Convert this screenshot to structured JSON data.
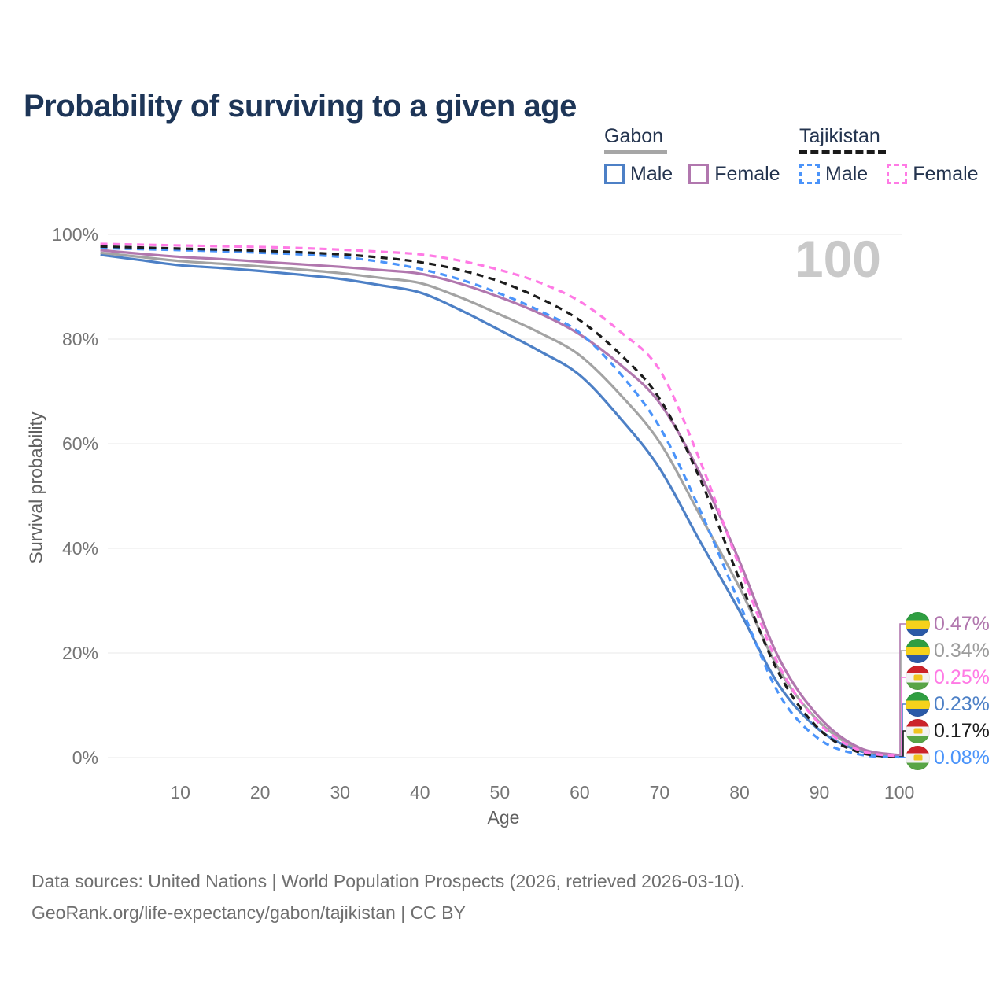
{
  "title": "Probability of surviving to a given age",
  "watermark": "100",
  "legend": {
    "groups": [
      {
        "country": "Gabon",
        "underline_style": "solid",
        "underline_color": "#a6a6a6",
        "items": [
          {
            "label": "Male",
            "color": "#4d80c6",
            "dashed": false
          },
          {
            "label": "Female",
            "color": "#b177ae",
            "dashed": false
          }
        ]
      },
      {
        "country": "Tajikistan",
        "underline_style": "dashed",
        "underline_color": "#1a1a1a",
        "items": [
          {
            "label": "Male",
            "color": "#4b94fa",
            "dashed": true
          },
          {
            "label": "Female",
            "color": "#ff7ae5",
            "dashed": true
          }
        ]
      }
    ]
  },
  "chart_data": {
    "type": "line",
    "title": "Probability of surviving to a given age",
    "xlabel": "Age",
    "ylabel": "Survival probability",
    "xlim": [
      0,
      100
    ],
    "ylim": [
      0,
      100
    ],
    "grid": "horizontal",
    "x_ticks": [
      10,
      20,
      30,
      40,
      50,
      60,
      70,
      80,
      90,
      100
    ],
    "y_ticks": [
      {
        "value": 0,
        "label": "0%"
      },
      {
        "value": 20,
        "label": "20%"
      },
      {
        "value": 40,
        "label": "40%"
      },
      {
        "value": 60,
        "label": "60%"
      },
      {
        "value": 80,
        "label": "80%"
      },
      {
        "value": 100,
        "label": "100%"
      }
    ],
    "ages": [
      0,
      5,
      10,
      15,
      20,
      25,
      30,
      35,
      40,
      45,
      50,
      55,
      60,
      65,
      70,
      75,
      80,
      85,
      90,
      95,
      100
    ],
    "series": [
      {
        "id": "gabon-male",
        "name": "Gabon Male",
        "color": "#4d80c6",
        "dashed": false,
        "values": [
          96.1,
          95.1,
          94.1,
          93.6,
          93.0,
          92.3,
          91.5,
          90.3,
          88.9,
          85.6,
          81.7,
          77.7,
          73.1,
          65.0,
          55.3,
          41.5,
          28.0,
          13.7,
          5.3,
          1.3,
          0.23
        ],
        "end_value": "0.23%"
      },
      {
        "id": "gabon-all",
        "name": "Gabon",
        "color": "#a3a3a3",
        "dashed": false,
        "values": [
          96.5,
          95.7,
          94.9,
          94.4,
          93.9,
          93.3,
          92.6,
          91.7,
          90.7,
          88.0,
          84.7,
          81.2,
          76.9,
          69.5,
          60.3,
          46.5,
          32.5,
          16.7,
          6.8,
          1.6,
          0.34
        ],
        "end_value": "0.34%"
      },
      {
        "id": "gabon-female",
        "name": "Gabon Female",
        "color": "#b177ae",
        "dashed": false,
        "values": [
          97.0,
          96.3,
          95.7,
          95.3,
          94.8,
          94.3,
          93.8,
          93.2,
          92.5,
          90.6,
          88.0,
          84.9,
          80.9,
          75.2,
          67.8,
          54.5,
          37.5,
          18.8,
          7.7,
          1.9,
          0.47
        ],
        "end_value": "0.47%"
      },
      {
        "id": "tajikistan-male",
        "name": "Tajikistan Male",
        "color": "#4b94fa",
        "dashed": true,
        "values": [
          97.4,
          97.2,
          97.0,
          96.8,
          96.5,
          96.2,
          95.7,
          94.8,
          93.4,
          91.4,
          88.7,
          85.4,
          81.2,
          73.5,
          63.2,
          47.5,
          29.5,
          12.0,
          3.5,
          0.6,
          0.08
        ],
        "end_value": "0.08%"
      },
      {
        "id": "tajikistan-all",
        "name": "Tajikistan",
        "color": "#1c1c1c",
        "dashed": true,
        "values": [
          97.7,
          97.5,
          97.3,
          97.1,
          96.9,
          96.6,
          96.2,
          95.6,
          94.7,
          93.2,
          91.0,
          87.8,
          83.6,
          77.2,
          68.6,
          53.5,
          34.0,
          15.9,
          5.4,
          1.0,
          0.17
        ],
        "end_value": "0.17%"
      },
      {
        "id": "tajikistan-female",
        "name": "Tajikistan Female",
        "color": "#ff7ae5",
        "dashed": true,
        "values": [
          98.2,
          98.05,
          97.9,
          97.75,
          97.6,
          97.4,
          97.1,
          96.7,
          96.2,
          95.0,
          93.2,
          90.8,
          87.2,
          81.5,
          74.1,
          57.0,
          36.5,
          17.4,
          6.5,
          1.4,
          0.25
        ],
        "end_value": "0.25%"
      }
    ],
    "end_labels": [
      {
        "value": "0.47%",
        "color": "#b177ae",
        "flag": "gabon",
        "series_index": 2
      },
      {
        "value": "0.34%",
        "color": "#9c9c9c",
        "flag": "gabon",
        "series_index": 1
      },
      {
        "value": "0.25%",
        "color": "#ff7ae5",
        "flag": "tajikistan",
        "series_index": 5
      },
      {
        "value": "0.23%",
        "color": "#4d80c6",
        "flag": "gabon",
        "series_index": 0
      },
      {
        "value": "0.17%",
        "color": "#1c1c1c",
        "flag": "tajikistan",
        "series_index": 4
      },
      {
        "value": "0.08%",
        "color": "#4b94fa",
        "flag": "tajikistan",
        "series_index": 3
      }
    ],
    "legend_position": "top-right",
    "age_counter": "100"
  },
  "footer": {
    "line1": "Data sources: United Nations | World Population Prospects (2026, retrieved 2026-03-10).",
    "line2": "GeoRank.org/life-expectancy/gabon/tajikistan | CC BY"
  }
}
